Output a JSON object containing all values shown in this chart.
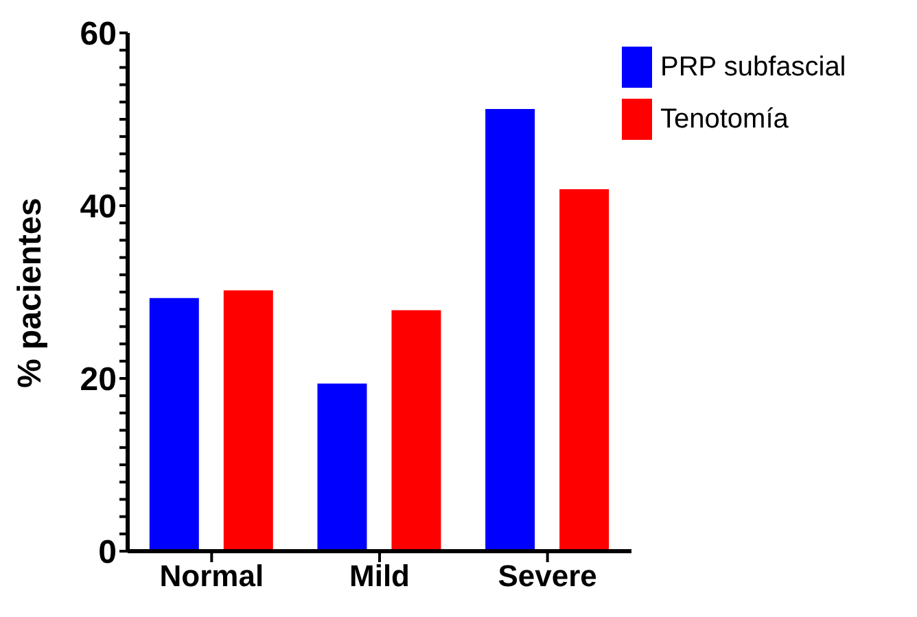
{
  "chart_data": {
    "type": "bar",
    "ylabel": "% pacientes",
    "categories": [
      "Normal",
      "Mild",
      "Severe"
    ],
    "series": [
      {
        "name": "PRP subfascial",
        "color": "#0000ff",
        "values": [
          29.3,
          19.4,
          51.2
        ]
      },
      {
        "name": "Tenotomía",
        "color": "#ff0000",
        "values": [
          30.2,
          27.9,
          41.9
        ]
      }
    ],
    "ylim": [
      0,
      60
    ],
    "yticks": [
      0,
      {
        "value": 2,
        "label": null
      },
      {
        "value": 4,
        "label": null
      },
      {
        "value": 6,
        "label": null
      },
      {
        "value": 8,
        "label": null
      },
      {
        "value": 10,
        "label": null
      },
      {
        "value": 12,
        "label": null
      },
      {
        "value": 14,
        "label": null
      },
      {
        "value": 16,
        "label": null
      },
      {
        "value": 18,
        "label": null
      },
      20,
      {
        "value": 22,
        "label": null
      },
      {
        "value": 24,
        "label": null
      },
      {
        "value": 26,
        "label": null
      },
      {
        "value": 28,
        "label": null
      },
      {
        "value": 30,
        "label": null
      },
      {
        "value": 32,
        "label": null
      },
      {
        "value": 34,
        "label": null
      },
      {
        "value": 36,
        "label": null
      },
      {
        "value": 38,
        "label": null
      },
      40,
      {
        "value": 42,
        "label": null
      },
      {
        "value": 44,
        "label": null
      },
      {
        "value": 46,
        "label": null
      },
      {
        "value": 48,
        "label": null
      },
      {
        "value": 50,
        "label": null
      },
      {
        "value": 52,
        "label": null
      },
      {
        "value": 54,
        "label": null
      },
      {
        "value": 56,
        "label": null
      },
      {
        "value": 58,
        "label": null
      },
      60
    ],
    "grid": false,
    "legend": "top right"
  }
}
